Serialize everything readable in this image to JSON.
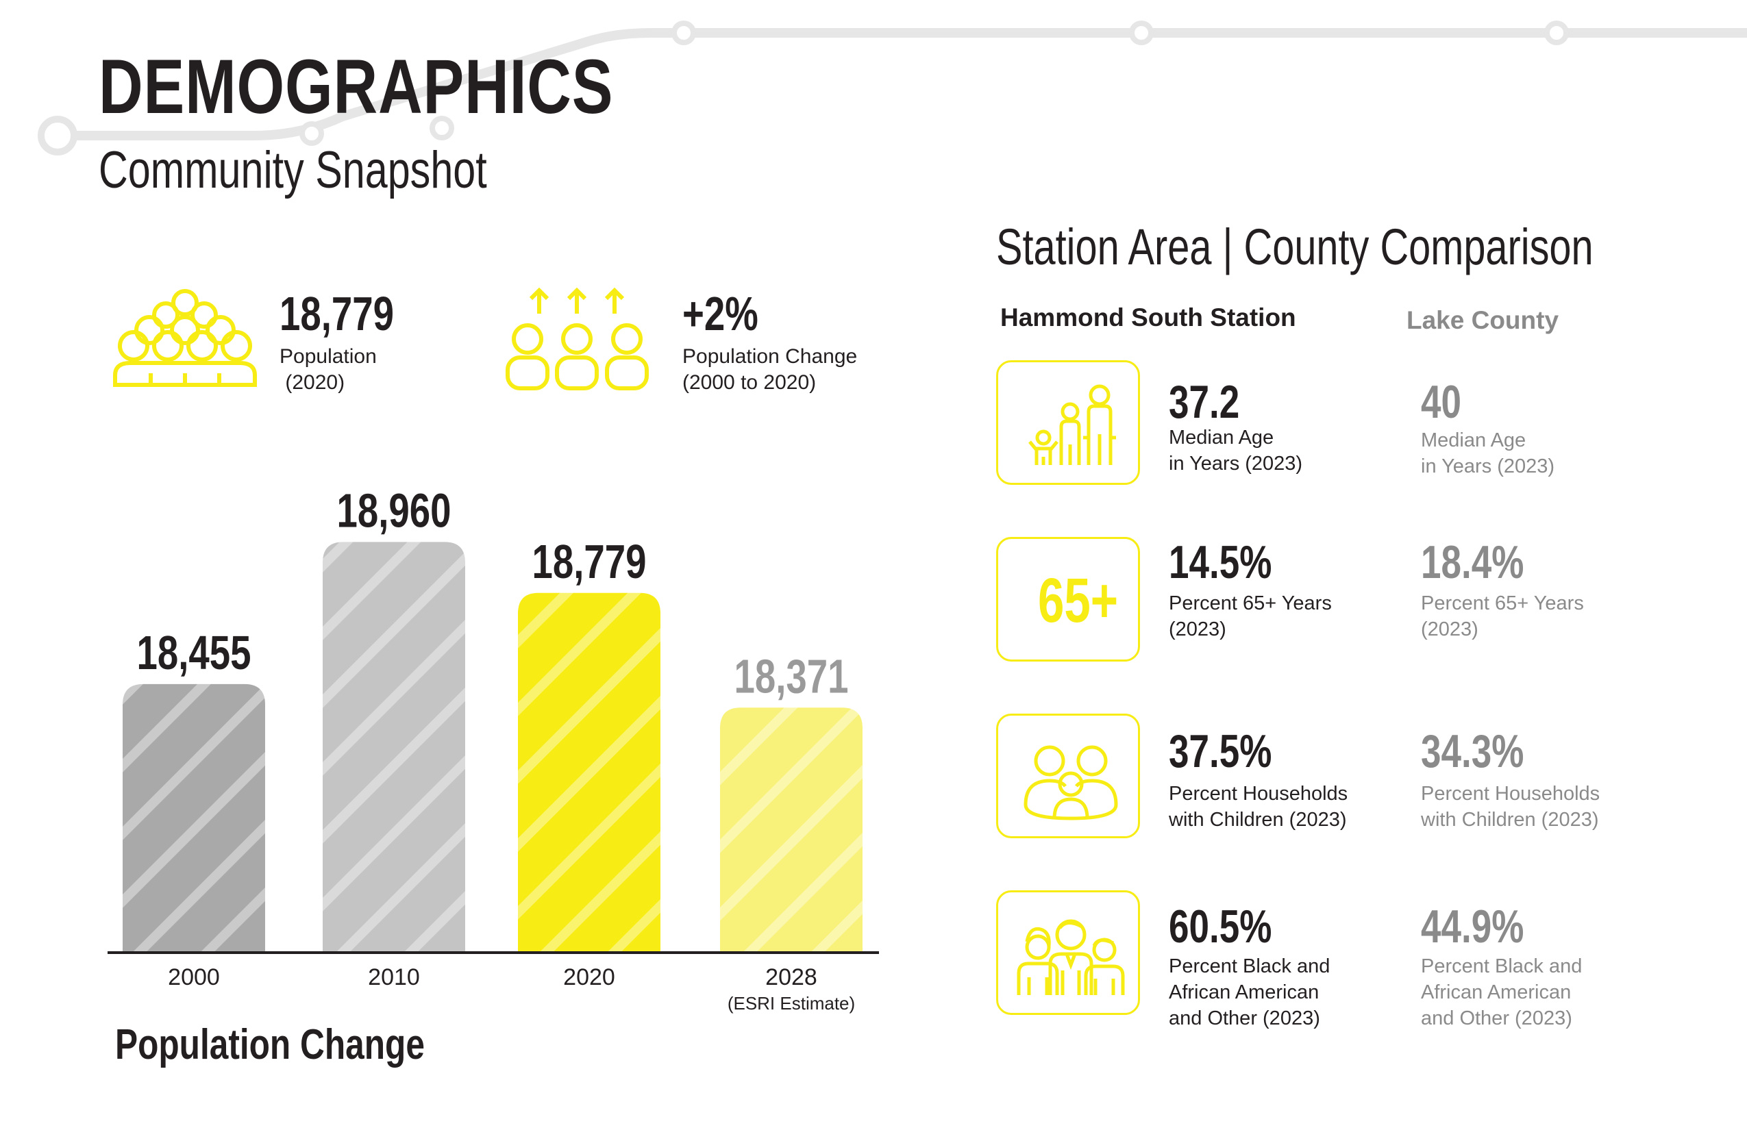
{
  "header": {
    "title": "DEMOGRAPHICS",
    "subtitle": "Community Snapshot"
  },
  "stats": {
    "population": {
      "value": "18,779",
      "label": "Population\n (2020)",
      "icon": "crowd-icon"
    },
    "change": {
      "value": "+2%",
      "label": "Population Change\n(2000 to 2020)",
      "icon": "people-growth-icon"
    }
  },
  "chart_data": {
    "type": "bar",
    "title": "Population Change",
    "categories": [
      "2000",
      "2010",
      "2020",
      "2028"
    ],
    "category_sublabels": [
      "",
      "",
      "",
      "(ESRI Estimate)"
    ],
    "values": [
      18455,
      18960,
      18779,
      18371
    ],
    "value_labels": [
      "18,455",
      "18,960",
      "18,779",
      "18,371"
    ],
    "bar_colors": [
      "#a9a9a9",
      "#c4c4c4",
      "#f7ec13",
      "#f8f27a"
    ],
    "label_colors": [
      "#231f20",
      "#231f20",
      "#231f20",
      "#9a9a9a"
    ],
    "xlabel": "",
    "ylabel": "",
    "ylim": [
      17500,
      19000
    ],
    "grid": false,
    "legend": "none"
  },
  "comparison": {
    "title": "Station Area |  County Comparison",
    "station_label": "Hammond South Station",
    "county_label": "Lake County",
    "rows": [
      {
        "icon": "family-icon",
        "station_value": "37.2",
        "county_value": "40",
        "label": "Median Age\nin Years (2023)"
      },
      {
        "icon": "sixty-five-plus-icon",
        "icon_text": "65+",
        "station_value": "14.5%",
        "county_value": "18.4%",
        "label": "Percent 65+ Years\n(2023)"
      },
      {
        "icon": "household-icon",
        "station_value": "37.5%",
        "county_value": "34.3%",
        "label": "Percent Households\nwith Children (2023)"
      },
      {
        "icon": "diverse-people-icon",
        "station_value": "60.5%",
        "county_value": "44.9%",
        "label": "Percent Black and\nAfrican American\nand Other (2023)"
      }
    ]
  },
  "colors": {
    "accent": "#f7ec13",
    "text": "#231f20",
    "muted": "#8a8a8a",
    "line": "#e6e6e6"
  }
}
